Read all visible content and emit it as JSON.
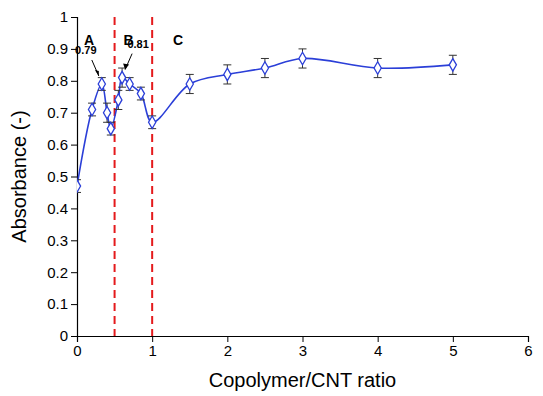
{
  "chart_data": {
    "type": "line",
    "x_label": "Copolymer/CNT ratio",
    "y_label": "Absorbance (-)",
    "x": [
      0,
      0.2,
      0.33,
      0.4,
      0.45,
      0.55,
      0.6,
      0.7,
      0.85,
      1,
      1.5,
      2,
      2.5,
      3,
      4,
      5
    ],
    "series": [
      {
        "color": "#2b3fd8",
        "marker": "diamond",
        "line_style": "solid",
        "values": [
          0.47,
          0.71,
          0.79,
          0.7,
          0.65,
          0.74,
          0.81,
          0.79,
          0.76,
          0.67,
          0.79,
          0.82,
          0.84,
          0.87,
          0.84,
          0.85
        ],
        "errors": [
          0.02,
          0.02,
          0.02,
          0.03,
          0.02,
          0.03,
          0.03,
          0.02,
          0.02,
          0.02,
          0.03,
          0.03,
          0.03,
          0.03,
          0.03,
          0.03
        ],
        "value_labels": [
          null,
          null,
          "0.79",
          null,
          null,
          null,
          "0.81",
          null,
          null,
          null,
          null,
          null,
          null,
          null,
          null,
          null
        ]
      }
    ],
    "vlines": [
      0.5,
      1
    ],
    "vline_color": "#e41a1c",
    "regions": [
      "A",
      "B",
      "C"
    ],
    "xlim": [
      0,
      6
    ],
    "xticks": [
      0,
      1,
      2,
      3,
      4,
      5,
      6
    ],
    "ylim": [
      0,
      1
    ],
    "yticks": [
      0,
      0.1,
      0.2,
      0.3,
      0.4,
      0.5,
      0.6,
      0.7,
      0.8,
      0.9,
      1
    ],
    "grid": false
  }
}
